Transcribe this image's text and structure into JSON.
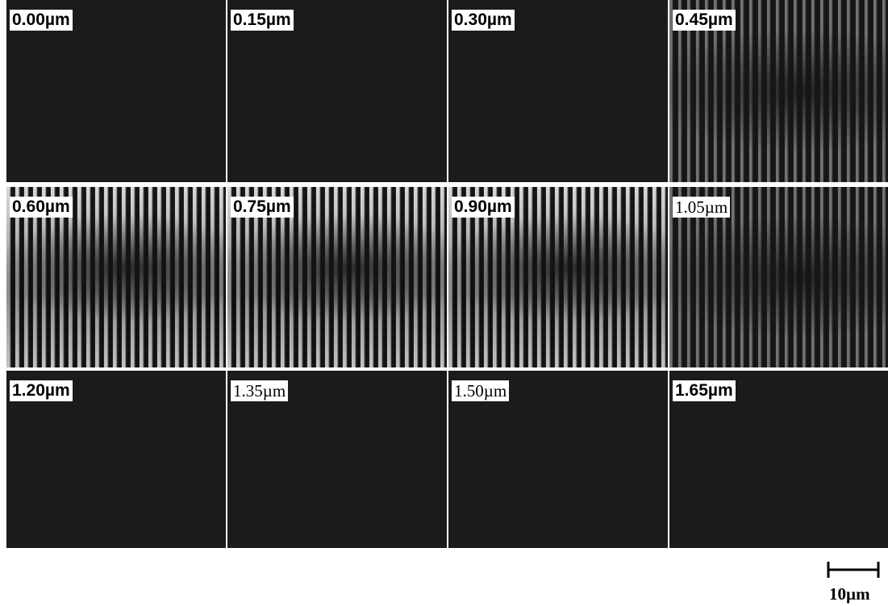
{
  "panels": [
    {
      "label": "0.00µm"
    },
    {
      "label": "0.15µm"
    },
    {
      "label": "0.30µm"
    },
    {
      "label": "0.45µm"
    },
    {
      "label": "0.60µm"
    },
    {
      "label": "0.75µm"
    },
    {
      "label": "0.90µm"
    },
    {
      "label": "1.05µm"
    },
    {
      "label": "1.20µm"
    },
    {
      "label": "1.35µm"
    },
    {
      "label": "1.50µm"
    },
    {
      "label": "1.65µm"
    }
  ],
  "scale_bar": {
    "label": "10µm"
  }
}
